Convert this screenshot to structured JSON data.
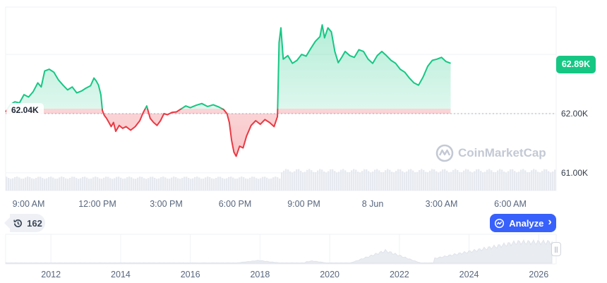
{
  "chart_data": [
    {
      "type": "area",
      "baseline": 62.0,
      "current_label": "62.89K",
      "open_label": "62.04K",
      "y_ticks": [
        "62.00K",
        "61.00K"
      ],
      "y_tick_values": [
        62.0,
        61.0
      ],
      "x_tick_labels": [
        "9:00 AM",
        "12:00 PM",
        "3:00 PM",
        "6:00 PM",
        "9:00 PM",
        "8 Jun",
        "3:00 AM",
        "6:00 AM"
      ],
      "x_tick_hours": [
        1,
        4,
        7,
        10,
        13,
        16,
        19,
        22
      ],
      "x_range_hours": [
        0,
        24
      ],
      "ylim": [
        60.7,
        63.8
      ],
      "points": [
        [
          0.0,
          62.03
        ],
        [
          0.2,
          62.15
        ],
        [
          0.4,
          62.2
        ],
        [
          0.6,
          62.18
        ],
        [
          0.8,
          62.32
        ],
        [
          1.0,
          62.28
        ],
        [
          1.2,
          62.37
        ],
        [
          1.4,
          62.52
        ],
        [
          1.55,
          62.45
        ],
        [
          1.7,
          62.72
        ],
        [
          1.9,
          62.75
        ],
        [
          2.1,
          62.7
        ],
        [
          2.3,
          62.57
        ],
        [
          2.5,
          62.48
        ],
        [
          2.7,
          62.4
        ],
        [
          2.9,
          62.45
        ],
        [
          3.1,
          62.35
        ],
        [
          3.3,
          62.38
        ],
        [
          3.5,
          62.43
        ],
        [
          3.7,
          62.47
        ],
        [
          3.85,
          62.6
        ],
        [
          3.95,
          62.55
        ],
        [
          4.05,
          62.48
        ],
        [
          4.15,
          62.32
        ],
        [
          4.22,
          62.05
        ],
        [
          4.3,
          61.97
        ],
        [
          4.4,
          61.92
        ],
        [
          4.5,
          61.85
        ],
        [
          4.6,
          61.78
        ],
        [
          4.7,
          61.85
        ],
        [
          4.8,
          61.7
        ],
        [
          4.95,
          61.8
        ],
        [
          5.1,
          61.75
        ],
        [
          5.25,
          61.78
        ],
        [
          5.45,
          61.72
        ],
        [
          5.65,
          61.78
        ],
        [
          5.85,
          61.88
        ],
        [
          6.0,
          62.02
        ],
        [
          6.15,
          62.13
        ],
        [
          6.3,
          61.92
        ],
        [
          6.45,
          61.85
        ],
        [
          6.6,
          61.8
        ],
        [
          6.75,
          61.88
        ],
        [
          6.9,
          62.0
        ],
        [
          7.05,
          61.98
        ],
        [
          7.25,
          62.02
        ],
        [
          7.45,
          62.03
        ],
        [
          7.65,
          62.08
        ],
        [
          7.85,
          62.13
        ],
        [
          8.05,
          62.1
        ],
        [
          8.3,
          62.14
        ],
        [
          8.55,
          62.17
        ],
        [
          8.8,
          62.12
        ],
        [
          9.05,
          62.15
        ],
        [
          9.3,
          62.11
        ],
        [
          9.5,
          62.07
        ],
        [
          9.65,
          62.0
        ],
        [
          9.75,
          61.85
        ],
        [
          9.85,
          61.55
        ],
        [
          9.95,
          61.35
        ],
        [
          10.05,
          61.28
        ],
        [
          10.2,
          61.45
        ],
        [
          10.35,
          61.42
        ],
        [
          10.5,
          61.62
        ],
        [
          10.7,
          61.8
        ],
        [
          10.9,
          61.88
        ],
        [
          11.1,
          61.82
        ],
        [
          11.3,
          61.9
        ],
        [
          11.5,
          61.85
        ],
        [
          11.7,
          61.78
        ],
        [
          11.85,
          61.95
        ],
        [
          11.92,
          63.2
        ],
        [
          12.0,
          63.45
        ],
        [
          12.1,
          62.92
        ],
        [
          12.3,
          62.98
        ],
        [
          12.5,
          62.85
        ],
        [
          12.7,
          62.9
        ],
        [
          12.9,
          63.0
        ],
        [
          13.1,
          62.97
        ],
        [
          13.3,
          63.1
        ],
        [
          13.5,
          63.22
        ],
        [
          13.7,
          63.3
        ],
        [
          13.8,
          63.5
        ],
        [
          13.9,
          63.28
        ],
        [
          14.05,
          63.45
        ],
        [
          14.2,
          63.38
        ],
        [
          14.35,
          63.05
        ],
        [
          14.5,
          62.86
        ],
        [
          14.65,
          62.95
        ],
        [
          14.8,
          63.05
        ],
        [
          15.0,
          62.98
        ],
        [
          15.2,
          62.95
        ],
        [
          15.4,
          63.08
        ],
        [
          15.6,
          63.05
        ],
        [
          15.8,
          62.92
        ],
        [
          16.0,
          62.85
        ],
        [
          16.2,
          62.98
        ],
        [
          16.4,
          63.05
        ],
        [
          16.6,
          62.98
        ],
        [
          16.8,
          62.9
        ],
        [
          17.0,
          62.85
        ],
        [
          17.2,
          62.75
        ],
        [
          17.4,
          62.7
        ],
        [
          17.6,
          62.6
        ],
        [
          17.8,
          62.52
        ],
        [
          18.0,
          62.48
        ],
        [
          18.2,
          62.62
        ],
        [
          18.4,
          62.8
        ],
        [
          18.6,
          62.9
        ],
        [
          18.8,
          62.92
        ],
        [
          19.0,
          62.95
        ],
        [
          19.2,
          62.88
        ],
        [
          19.4,
          62.85
        ]
      ],
      "volume_level": [
        0.55,
        0.85
      ],
      "watermark": "CoinMarketCap"
    },
    {
      "type": "area",
      "x_tick_labels": [
        "2012",
        "2014",
        "2016",
        "2018",
        "2020",
        "2022",
        "2024",
        "2026"
      ],
      "x_tick_years": [
        2012,
        2014,
        2016,
        2018,
        2020,
        2022,
        2024,
        2026
      ],
      "x_range_years": [
        2010.7,
        2026.5
      ]
    }
  ],
  "controls": {
    "history_count": "162",
    "analyze_label": "Analyze",
    "analyze_chevron": "›"
  },
  "icons": {
    "history": "history-clock-icon",
    "analyze": "ai-analyze-icon",
    "logo": "coinmarketcap-logo-icon"
  },
  "colors": {
    "up": "#16c784",
    "down": "#ea3943",
    "accent": "#3861fb",
    "grid": "#eff2f5"
  }
}
